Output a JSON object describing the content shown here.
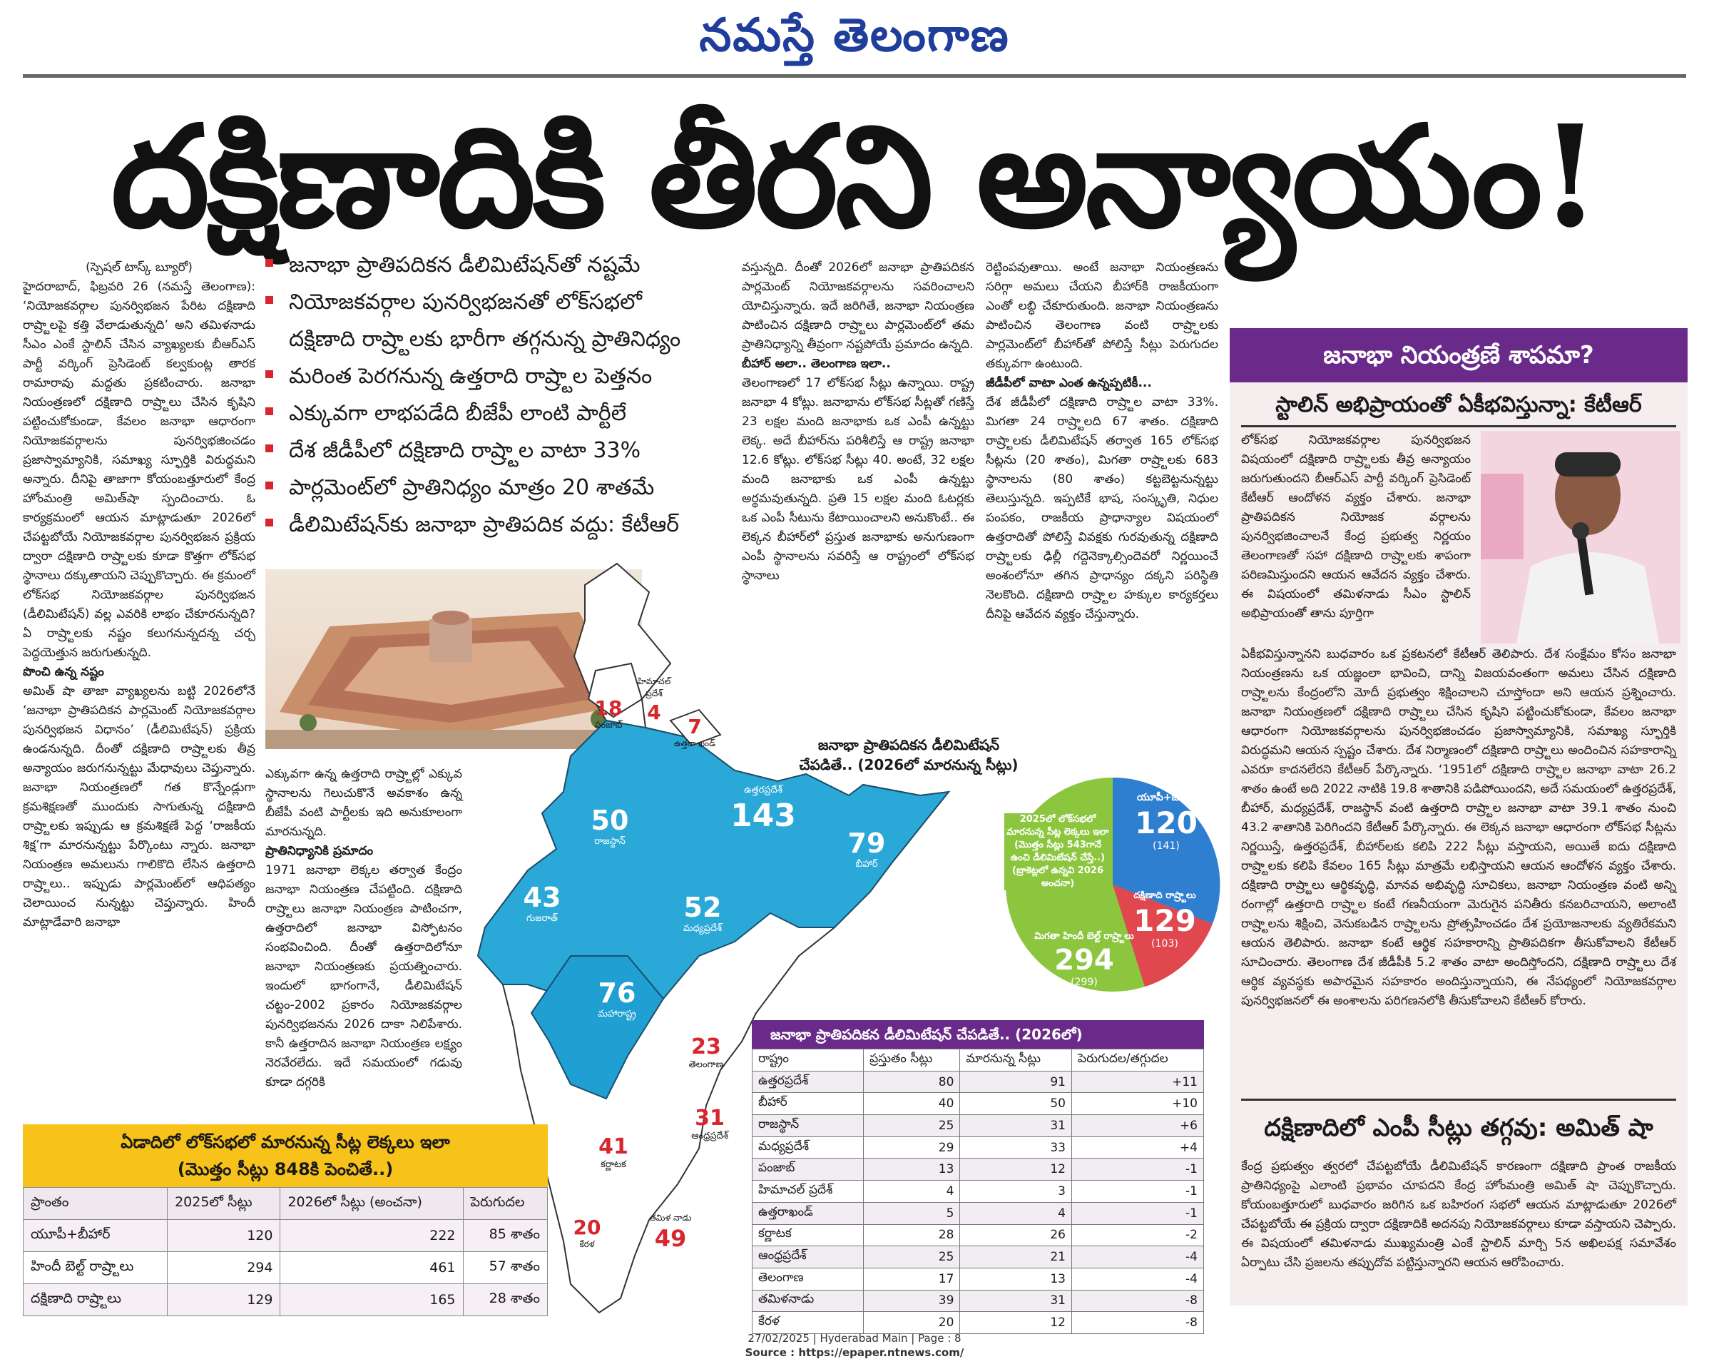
{
  "masthead": "నమస్తే తెలంగాణ",
  "headline": "దక్షిణాదికి తీరని అన్యాయం!",
  "bullets": [
    "జనాభా ప్రాతిపదికన డీలిమిటేషన్‌తో నష్టమే",
    "నియోజకవర్గాల పునర్విభజనతో లోక్‌సభలో",
    "దక్షిణాది రాష్ర్టాలకు భారీగా తగ్గనున్న ప్రాతినిధ్యం",
    "మరింత పెరగనున్న ఉత్తరాది రాష్ర్టాల పెత్తనం",
    "ఎక్కువగా లాభపడేది బీజేపీ లాంటి పార్టీలే",
    "దేశ జీడీపీలో దక్షిణాది రాష్ర్టాల వాటా 33%",
    "పార్లమెంట్‌లో ప్రాతినిధ్యం మాత్రం 20 శాతమే",
    "డీలిమిటేషన్‌కు జనాభా ప్రాతిపదిక వద్దు: కేటీఆర్"
  ],
  "col1": {
    "byline": "(స్పెషల్ టాస్క్ బ్యూరో)",
    "para1": "హైదరాబాద్, ఫిబ్రవరి 26 (నమస్తే తెలంగాణ): ‘నియోజకవర్గాల పునర్విభజన పేరిట దక్షిణాది రాష్ర్టాలపై కత్తి వేలాడుతున్నది’ అని తమిళనాడు సీఎం ఎంకే స్టాలిన్ చేసిన వ్యాఖ్యలకు బీఆర్‌ఎస్ పార్టీ వర్కింగ్ ప్రెసిడెంట్ కల్వకుంట్ల తారక రామారావు మద్దతు ప్రకటించారు. జనాభా నియంత్రణలో దక్షిణాది రాష్ర్టాలు చేసిన కృషిని పట్టించుకోకుండా, కేవలం జనాభా ఆధారంగా నియోజకవర్గాలను పునర్విభజించడం ప్రజాస్వామ్యానికి, సమాఖ్య స్ఫూర్తికి విరుద్ధమని అన్నారు. దీనిపై తాజాగా కోయంబత్తూరులో కేంద్ర హోంమంత్రి అమిత్‌షా స్పందించారు. ఓ కార్యక్రమంలో ఆయన మాట్లాడుతూ 2026లో చేపట్టబోయే నియోజకవర్గాల పునర్విభజన ప్రక్రియ ద్వారా దక్షిణాది రాష్ర్టాలకు కూడా కొత్తగా లోక్‌సభ స్థానాలు దక్కుతాయని చెప్పుకొచ్చారు. ఈ క్రమంలో లోక్‌సభ నియోజకవర్గాల పునర్విభజన (డీలిమిటేషన్) వల్ల ఎవరికి లాభం చేకూరనున్నది? ఏ రాష్ర్టాలకు నష్టం కలుగనున్నదన్న చర్చ పెద్దయెత్తున జరుగుతున్నది.",
    "sub1": "పొంచి ఉన్న నష్టం",
    "para2": "అమిత్ షా తాజా వ్యాఖ్యలను బట్టి 2026లోనే ‘జనాభా ప్రాతిపదికన పార్లమెంట్ నియోజకవర్గాల పునర్విభజన విధానం’ (డీలిమిటేషన్) ప్రక్రియ ఉండనున్నది. దీంతో దక్షిణాది రాష్ర్టాలకు తీవ్ర అన్యాయం జరుగనున్నట్టు మేధావులు చెప్తున్నారు. జనాభా నియంత్రణలో గత కొన్నేండ్లుగా క్రమశిక్షణతో ముందుకు సాగుతున్న దక్షిణాది రాష్ర్టాలకు ఇప్పుడు ఆ క్రమశిక్షణే పెద్ద ‘రాజకీయ శిక్ష’గా మారనున్నట్టు పేర్కొంటు న్నారు. జనాభా నియంత్రణ అమలును గాలికొది లేసిన ఉత్తరాది రాష్ర్టాలు.. ఇప్పుడు పార్లమెంట్‌లో ఆధిపత్యం చెలాయించ నున్నట్టు చెప్తున్నారు. హిందీ మాట్లాడేవారి జనాభా"
  },
  "col2": {
    "para1": "ఎక్కువగా ఉన్న ఉత్తరాది రాష్ర్టాల్లో ఎక్కువ స్థానాలను గెలుచుకొనే అవకాశం ఉన్న బీజేపీ వంటి పార్టీలకు ఇది అనుకూలంగా మారనున్నది.",
    "sub1": "ప్రాతినిధ్యానికి ప్రమాదం",
    "para2": "1971 జనాభా లెక్కల తర్వాత కేంద్రం జనాభా నియంత్రణ చేపట్టింది. దక్షిణాది రాష్ర్టాలు జనాభా నియంత్రణ పాటించగా, ఉత్తరాదిలో జనాభా విస్ఫోటనం సంభవించింది. దీంతో ఉత్తరాదిలోనూ జనాభా నియంత్రణకు ప్రయత్నించారు. ఇందులో భాగంగానే, డీలిమిటేషన్ చట్టం-2002 ప్రకారం నియోజకవర్గాల పునర్విభజనను 2026 దాకా నిలిపేశారు. కానీ ఉత్తరాదిన జనాభా నియంత్రణ లక్ష్యం నెరవేరలేదు. ఇదే సమయంలో గడువు కూడా దగ్గరికి"
  },
  "col3": {
    "para1": "వస్తున్నది. దీంతో 2026లో జనాభా ప్రాతిపదికన పార్లమెంట్ నియోజకవర్గాలను సవరించాలని యోచిస్తున్నారు. ఇదే జరిగితే, జనాభా నియంత్రణ పాటించిన దక్షిణాది రాష్ర్టాలు పార్లమెంట్‌లో తమ ప్రాతినిధ్యాన్ని తీవ్రంగా నష్టపోయే ప్రమాదం ఉన్నది.",
    "sub1": "బీహార్ అలా.. తెలంగాణ ఇలా..",
    "para2": "తెలంగాణలో 17 లోక్‌సభ సీట్లు ఉన్నాయి. రాష్ట్ర జనాభా 4 కోట్లు. జనాభాను లోక్‌సభ సీట్లతో గణిస్తే 23 లక్షల మంది జనాభాకు ఒక ఎంపీ ఉన్నట్టు లెక్క. అదే బీహార్‌ను పరిశీలిస్తే ఆ రాష్ట్ర జనాభా 12.6 కోట్లు. లోక్‌సభ సీట్లు 40. అంటే, 32 లక్షల మంది జనాభాకు ఒక ఎంపీ ఉన్నట్టు అర్థమవుతున్నది. ప్రతి 15 లక్షల మంది ఓటర్లకు ఒక ఎంపీ సీటును కేటాయించాలని అనుకొంటే.. ఈ లెక్కన బీహార్‌లో ప్రస్తుత జనాభాకు అనుగుణంగా ఎంపీ స్థానాలను సవరిస్తే ఆ రాష్ట్రంలో లోక్‌సభ స్థానాలు"
  },
  "col4": {
    "para1": "రెట్టింపవుతాయి. అంటే జనాభా నియంత్రణను సరిగ్గా అమలు చేయని బీహార్‌కి రాజకీయంగా ఎంతో లబ్ధి చేకూరుతుంది. జనాభా నియంత్రణను పాటించిన తెలంగాణ వంటి రాష్ర్టాలకు పార్లమెంట్‌లో బీహార్‌తో పోలిస్తే సీట్లు పెరుగుదల తక్కువగా ఉంటుంది.",
    "sub1": "జీడీపీలో వాటా ఎంత ఉన్నప్పటికీ...",
    "para2": "దేశ జీడీపీలో దక్షిణాది రాష్ర్టాల వాటా 33%. మిగతా 24 రాష్ర్టాలది 67 శాతం. దక్షిణాది రాష్ర్టాలకు డీలిమిటేషన్ తర్వాత 165 లోక్‌సభ సీట్లను (20 శాతం), మిగతా రాష్ర్టాలకు 683 స్థానాలను (80 శాతం) కట్టబెట్టనున్నట్టు తెలుస్తున్నది. ఇప్పటికే భాష, సంస్కృతి, నిధుల పంపకం, రాజకీయ ప్రాధాన్యాల విషయంలో ఉత్తరాదితో పోలిస్తే వివక్షకు గురవుతున్న దక్షిణాది రాష్ర్టాలకు ఢిల్లీ గద్దెనెక్కాల్సిందెవరో నిర్ణయించే అంశంలోనూ తగిన ప్రాధాన్యం దక్కని పరిస్థితి నెలకొంది. దక్షిణాది రాష్ర్టాల హక్కుల కార్యకర్తలు దీనిపై ఆవేదన వ్యక్తం చేస్తున్నారు."
  },
  "sidebar": {
    "banner": "జనాభా నియంత్రణే శాపమా?",
    "subtitle": "స్టాలిన్ అభిప్రాయంతో ఏకీభవిస్తున్నా: కేటీఆర్",
    "para1": "లోక్‌సభ నియోజకవర్గాల పునర్విభజన విషయంలో దక్షిణాది రాష్ర్టాలకు తీవ్ర అన్యాయం జరుగుతుందని బీఆర్‌ఎస్ పార్టీ వర్కింగ్ ప్రెసిడెంట్ కేటీఆర్ ఆందోళన వ్యక్తం చేశారు. జనాభా ప్రాతిపదికన నియోజక వర్గాలను పునర్విభజించాలనే కేంద్ర ప్రభుత్వ నిర్ణయం తెలంగాణతో సహా దక్షిణాది రాష్ర్టాలకు శాపంగా పరిణమిస్తుందని ఆయన ఆవేదన వ్యక్తం చేశారు. ఈ విషయంలో తమిళనాడు సీఎం స్టాలిన్ అభిప్రాయంతో తాను పూర్తిగా ఏకీభవిస్తున్నానని బుధవారం ఒక ప్రకటనలో కేటీఆర్ తెలిపారు. దేశ సంక్షేమం కోసం జనాభా నియంత్రణను ఒక యజ్ఞంలా భావించి, దాన్ని విజయవంతంగా అమలు చేసిన దక్షిణాది రాష్ర్టాలను కేంద్రంలోని మోదీ ప్రభుత్వం శిక్షించాలని చూస్తోందా అని ఆయన ప్రశ్నించారు. జనాభా నియంత్రణలో దక్షిణాది రాష్ర్టాలు చేసిన కృషిని పట్టించుకోకుండా, కేవలం జనాభా ఆధారంగా నియోజకవర్గాలను పునర్విభజించడం ప్రజాస్వామ్యానికి, సమాఖ్య స్ఫూర్తికి విరుద్ధమని ఆయన స్పష్టం చేశారు. దేశ నిర్మాణంలో దక్షిణాది రాష్ర్టాలు అందించిన సహకారాన్ని ఎవరూ కాదనలేరని కేటీఆర్ పేర్కొన్నారు. ‘1951లో దక్షిణాది రాష్ర్టాల జనాభా వాటా 26.2 శాతం ఉంటే అది 2022 నాటికి 19.8 శాతానికి పడిపోయిందని, అదే సమయంలో ఉత్తరప్రదేశ్, బీహార్, మధ్యప్రదేశ్, రాజస్థాన్ వంటి ఉత్తరాది రాష్ర్టాల జనాభా వాటా 39.1 శాతం నుంచి 43.2 శాతానికి పెరిగిందని కేటీఆర్ పేర్కొన్నారు. ఈ లెక్కన జనాభా ఆధారంగా లోక్‌సభ సీట్లను నిర్ణయిస్తే, ఉత్తరప్రదేశ్, బీహార్‌లకు కలిపి 222 సీట్లు వస్తాయని, అయితే ఐదు దక్షిణాది రాష్ర్టాలకు కలిపి కేవలం 165 సీట్లు మాత్రమే లభిస్తాయని ఆయన ఆందోళన వ్యక్తం చేశారు. దక్షిణాది రాష్ర్టాలు ఆర్థికవృద్ధి, మానవ అభివృద్ధి సూచికలు, జనాభా నియంత్రణ వంటి అన్ని రంగాల్లో ఉత్తరాది రాష్ర్టాల కంటే గణనీయంగా మెరుగైన పనితీరు కనబరిచాయని, అలాంటి రాష్ర్టాలను శిక్షించి, వెనుకబడిన రాష్ర్టాలను ప్రోత్సహించడం దేశ ప్రయోజనాలకు వ్యతిరేకమని ఆయన తెలిపారు. జనాభా కంటే ఆర్థిక సహకారాన్ని ప్రాతిపదికగా తీసుకోవాలని కేటీఆర్ సూచించారు. తెలంగాణ దేశ జీడీపీకి 5.2 శాతం వాటా అందిస్తోందని, దక్షిణాది రాష్ర్టాలు దేశ ఆర్థిక వ్యవస్థకు అపారమైన సహకారం అందిస్తున్నాయని, ఈ నేపథ్యంలో నియోజకవర్గాల పునర్విభజనలో ఈ అంశాలను పరిగణనలోకి తీసుకోవాలని కేటీఆర్ కోరారు.",
    "title2": "దక్షిణాదిలో ఎంపీ సీట్లు తగ్గవు: అమిత్ షా",
    "para2": "కేంద్ర ప్రభుత్వం త్వరలో చేపట్టబోయే డీలిమిటేషన్ కారణంగా దక్షిణాది ప్రాంత రాజకీయ ప్రాతినిధ్యంపై ఎలాంటి ప్రభావం చూపదని కేంద్ర హోంమంత్రి అమిత్ షా చెప్పుకొచ్చారు. కోయంబత్తూరులో బుధవారం జరిగిన ఒక బహిరంగ సభలో ఆయన మాట్లాడుతూ 2026లో చేపట్టబోయే ఈ ప్రక్రియ ద్వారా దక్షిణాదికి అదనపు నియోజకవర్గాలు కూడా వస్తాయని చెప్పారు. ఈ విషయంలో తమిళనాడు ముఖ్యమంత్రి ఎంకే స్టాలిన్ మార్చి 5న అఖిలపక్ష సమావేశం ఏర్పాటు చేసి ప్రజలను తప్పుదోవ పట్టిస్తున్నారని ఆయన ఆరోపించారు."
  },
  "table1": {
    "title1": "ఏడాదిలో లోక్‌సభలో మారనున్న సీట్ల లెక్కలు ఇలా",
    "title2": "(మొత్తం సీట్లు 848కి పెంచితే..)",
    "headers": [
      "ప్రాంతం",
      "2025లో సీట్లు",
      "2026లో సీట్లు (అంచనా)",
      "పెరుగుదల"
    ],
    "rows": [
      [
        "యూపీ+బీహార్",
        "120",
        "222",
        "85 శాతం"
      ],
      [
        "హిందీ బెల్ట్ రాష్ర్టాలు",
        "294",
        "461",
        "57 శాతం"
      ],
      [
        "దక్షిణాది రాష్ర్టాలు",
        "129",
        "165",
        "28 శాతం"
      ]
    ]
  },
  "table2": {
    "title": "జనాభా ప్రాతిపదికన డీలిమిటేషన్ చేపడితే.. (2026లో)",
    "headers": [
      "రాష్ట్రం",
      "ప్రస్తుతం సీట్లు",
      "మారనున్న సీట్లు",
      "పెరుగుదల/తగ్గుదల"
    ],
    "rows": [
      [
        "ఉత్తరప్రదేశ్",
        "80",
        "91",
        "+11"
      ],
      [
        "బీహార్",
        "40",
        "50",
        "+10"
      ],
      [
        "రాజస్థాన్",
        "25",
        "31",
        "+6"
      ],
      [
        "మధ్యప్రదేశ్",
        "29",
        "33",
        "+4"
      ],
      [
        "పంజాబ్",
        "13",
        "12",
        "-1"
      ],
      [
        "హిమాచల్ ప్రదేశ్",
        "4",
        "3",
        "-1"
      ],
      [
        "ఉత్తరాఖండ్",
        "5",
        "4",
        "-1"
      ],
      [
        "కర్ణాటక",
        "28",
        "26",
        "-2"
      ],
      [
        "ఆంధ్రప్రదేశ్",
        "25",
        "21",
        "-4"
      ],
      [
        "తెలంగాణ",
        "17",
        "13",
        "-4"
      ],
      [
        "తమిళనాడు",
        "39",
        "31",
        "-8"
      ],
      [
        "కేరళ",
        "20",
        "12",
        "-8"
      ]
    ]
  },
  "map": {
    "title1": "జనాభా ప్రాతిపదికన డీలిమిటేషన్",
    "title2": "చేపడితే.. (2026లో మారనున్న సీట్లు)",
    "regions": [
      {
        "num": "18",
        "name": "పంజాబ్"
      },
      {
        "num": "4",
        "name": "హిమాచల్ ప్రదేశ్"
      },
      {
        "num": "7",
        "name": "ఉత్తరా ఖండ్"
      },
      {
        "num": "50",
        "name": "రాజస్థాన్"
      },
      {
        "num": "143",
        "name": "ఉత్తరప్రదేశ్"
      },
      {
        "num": "79",
        "name": "బీహార్"
      },
      {
        "num": "43",
        "name": "గుజరాత్"
      },
      {
        "num": "52",
        "name": "మధ్యప్రదేశ్"
      },
      {
        "num": "76",
        "name": "మహారాష్ట్ర"
      },
      {
        "num": "23",
        "name": "తెలంగాణ"
      },
      {
        "num": "31",
        "name": "ఆంధ్రప్రదేశ్"
      },
      {
        "num": "41",
        "name": "కర్ణాటక"
      },
      {
        "num": "20",
        "name": "కేరళ"
      },
      {
        "num": "49",
        "name": "తమిళ నాడు"
      }
    ],
    "pie": {
      "center_text": "2025లో లోక్‌సభలో మారనున్న సీట్ల లెక్కలు ఇలా (మొత్తం సీట్లు 543గానే ఉంచి డీలిమిటేషన్ చేస్తే..) (బ్రాకెట్లలో ఉన్నవి 2026 అంచనా)",
      "slices": [
        {
          "label": "యూపీ+బీహార్",
          "value": "120",
          "sub": "(141)",
          "color": "#2f7fd0"
        },
        {
          "label": "దక్షిణాది రాష్ర్టాలు",
          "value": "129",
          "sub": "(103)",
          "color": "#e0474e"
        },
        {
          "label": "మిగతా హిందీ బెల్ట్ రాష్ర్టాలు",
          "value": "294",
          "sub": "(299)",
          "color": "#8cc63f"
        }
      ]
    }
  },
  "footer": {
    "line1": "27/02/2025 | Hyderabad Main | Page : 8",
    "line2": "Source : https://epaper.ntnews.com/"
  }
}
